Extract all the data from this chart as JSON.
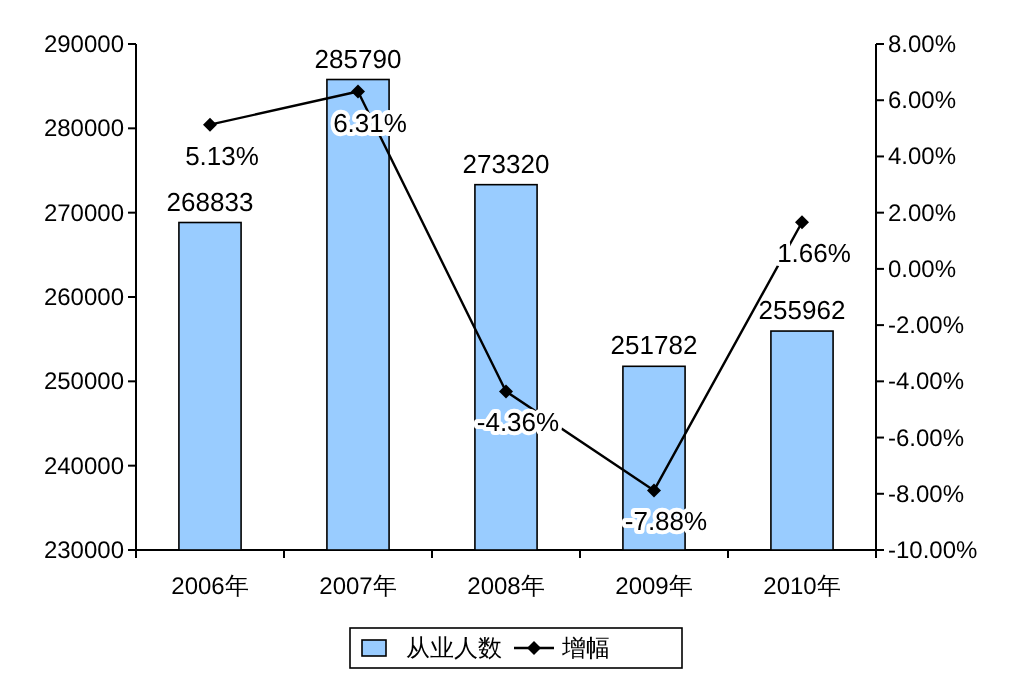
{
  "chart_data": {
    "type": "bar",
    "categories": [
      "2006年",
      "2007年",
      "2008年",
      "2009年",
      "2010年"
    ],
    "series": [
      {
        "name": "从业人数",
        "color": "#99ccff",
        "values": [
          268833,
          285790,
          273320,
          251782,
          255962
        ],
        "value_labels": [
          "268833",
          "285790",
          "273320",
          "251782",
          "255962"
        ]
      },
      {
        "name": "增幅",
        "type": "line",
        "axis": "y2",
        "color": "#000000",
        "marker": "diamond",
        "values": [
          5.13,
          6.31,
          -4.36,
          -7.88,
          1.66
        ],
        "value_labels": [
          "5.13%",
          "6.31%",
          "-4.36%",
          "-7.88%",
          "1.66%"
        ]
      }
    ],
    "ylim": [
      230000,
      290000
    ],
    "yticks": [
      230000,
      240000,
      250000,
      260000,
      270000,
      280000,
      290000
    ],
    "y2lim": [
      -10,
      8
    ],
    "y2ticks": [
      {
        "value": -10,
        "label": "-10.00%"
      },
      {
        "value": -8,
        "label": "-8.00%"
      },
      {
        "value": -6,
        "label": "-6.00%"
      },
      {
        "value": -4,
        "label": "-4.00%"
      },
      {
        "value": -2,
        "label": "-2.00%"
      },
      {
        "value": 0,
        "label": "0.00%"
      },
      {
        "value": 2,
        "label": "2.00%"
      },
      {
        "value": 4,
        "label": "4.00%"
      },
      {
        "value": 6,
        "label": "6.00%"
      },
      {
        "value": 8,
        "label": "8.00%"
      }
    ],
    "legend": "bottom"
  }
}
